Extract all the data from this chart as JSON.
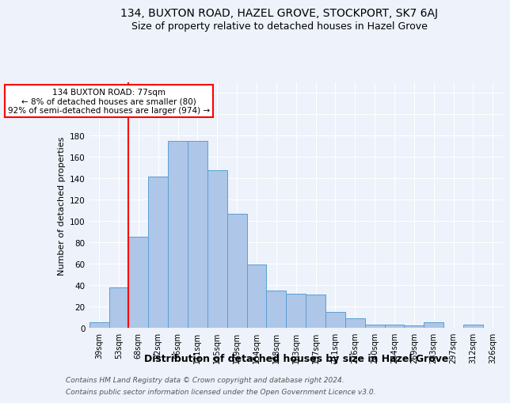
{
  "title1": "134, BUXTON ROAD, HAZEL GROVE, STOCKPORT, SK7 6AJ",
  "title2": "Size of property relative to detached houses in Hazel Grove",
  "xlabel": "Distribution of detached houses by size in Hazel Grove",
  "ylabel": "Number of detached properties",
  "footnote1": "Contains HM Land Registry data © Crown copyright and database right 2024.",
  "footnote2": "Contains public sector information licensed under the Open Government Licence v3.0.",
  "categories": [
    "39sqm",
    "53sqm",
    "68sqm",
    "82sqm",
    "96sqm",
    "111sqm",
    "125sqm",
    "139sqm",
    "154sqm",
    "168sqm",
    "183sqm",
    "197sqm",
    "211sqm",
    "226sqm",
    "240sqm",
    "254sqm",
    "269sqm",
    "283sqm",
    "297sqm",
    "312sqm",
    "326sqm"
  ],
  "values": [
    5,
    38,
    85,
    142,
    175,
    175,
    148,
    107,
    59,
    35,
    32,
    31,
    15,
    9,
    3,
    3,
    2,
    5,
    0,
    3,
    0
  ],
  "bar_color": "#aec6e8",
  "bar_edge_color": "#5a9fd4",
  "vline_color": "red",
  "vline_position": 1.5,
  "annotation_text": "134 BUXTON ROAD: 77sqm\n← 8% of detached houses are smaller (80)\n92% of semi-detached houses are larger (974) →",
  "annotation_box_color": "white",
  "annotation_box_edgecolor": "red",
  "ylim": [
    0,
    230
  ],
  "yticks": [
    0,
    20,
    40,
    60,
    80,
    100,
    120,
    140,
    160,
    180,
    200,
    220
  ],
  "bg_color": "#edf2fb",
  "grid_color": "white",
  "title1_fontsize": 10,
  "title2_fontsize": 9,
  "ylabel_fontsize": 8,
  "xlabel_fontsize": 9,
  "tick_fontsize": 7,
  "annot_fontsize": 7.5,
  "footnote_fontsize": 6.5
}
